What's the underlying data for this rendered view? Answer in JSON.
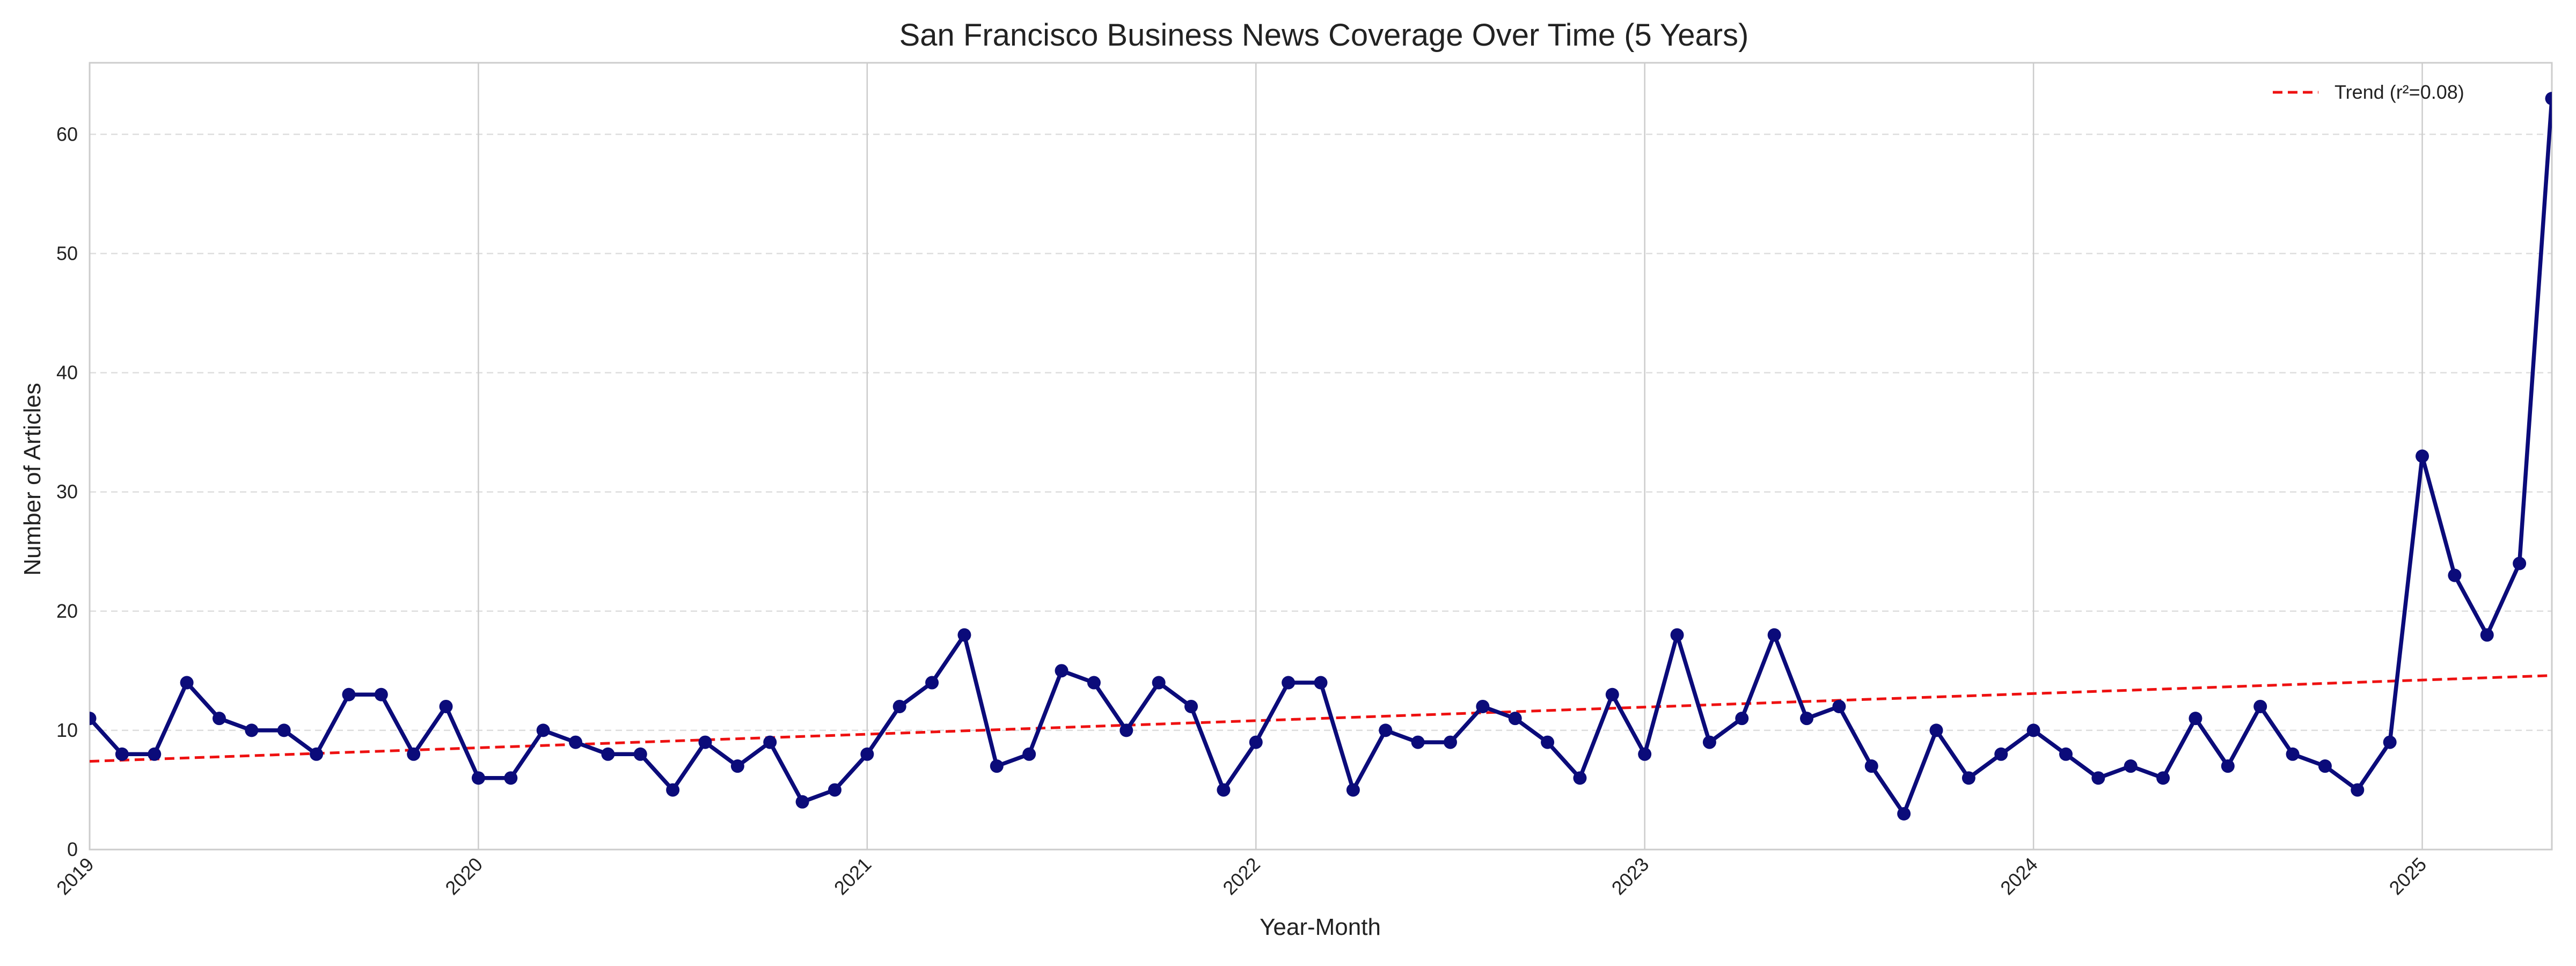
{
  "chart_data": {
    "type": "line",
    "title": "San Francisco Business News Coverage Over Time (5 Years)",
    "xlabel": "Year-Month",
    "ylabel": "Number of Articles",
    "x_start": "2019-01",
    "x_ticks": [
      "2019",
      "2020",
      "2021",
      "2022",
      "2023",
      "2024",
      "2025"
    ],
    "xlim": [
      "2019-01",
      "2025-05"
    ],
    "ylim": [
      0,
      66
    ],
    "y_ticks": [
      0,
      10,
      20,
      30,
      40,
      50,
      60
    ],
    "grid": true,
    "legend_position": "top-right",
    "series": [
      {
        "values": [
          11,
          8,
          8,
          14,
          11,
          10,
          10,
          8,
          13,
          13,
          8,
          12,
          6,
          6,
          10,
          9,
          8,
          8,
          5,
          9,
          7,
          9,
          4,
          5,
          8,
          12,
          14,
          18,
          7,
          8,
          15,
          14,
          10,
          14,
          12,
          5,
          9,
          14,
          14,
          5,
          10,
          9,
          9,
          12,
          11,
          9,
          6,
          13,
          8,
          18,
          9,
          11,
          18,
          11,
          12,
          7,
          3,
          10,
          6,
          8,
          10,
          8,
          6,
          7,
          6,
          11,
          7,
          12,
          8,
          7,
          5,
          9,
          33,
          23,
          18,
          24,
          63
        ],
        "color": "#0b0b7a"
      },
      {
        "name": "Trend (r²=0.08)",
        "type": "trend",
        "start": 7.4,
        "end": 14.6,
        "color": "#ee1111"
      }
    ]
  }
}
